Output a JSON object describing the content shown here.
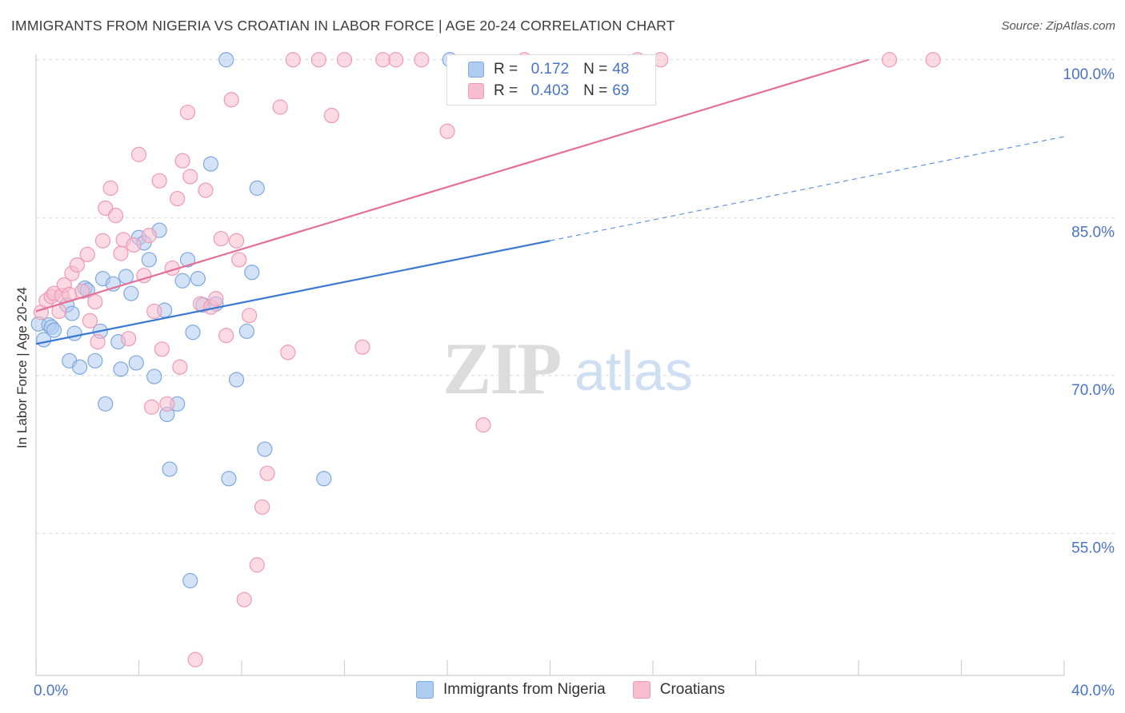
{
  "title": "IMMIGRANTS FROM NIGERIA VS CROATIAN IN LABOR FORCE | AGE 20-24 CORRELATION CHART",
  "source": "Source: ZipAtlas.com",
  "watermark": {
    "zip": "ZIP",
    "atlas": "atlas"
  },
  "legend": {
    "r_label": "R =",
    "n_label": "N =",
    "series": [
      {
        "r": "0.172",
        "n": "48"
      },
      {
        "r": "0.403",
        "n": "69"
      }
    ]
  },
  "colors": {
    "blue_fill": "#aecbf0",
    "blue_stroke": "#7fa8e0",
    "blue_line": "#3a78d4",
    "pink_fill": "#f7bccd",
    "pink_stroke": "#ef9ab4",
    "pink_line": "#e46f98",
    "tick_label": "#4a73c8",
    "grid": "#d9d9d9"
  },
  "chart_data": {
    "type": "scatter",
    "title": "IMMIGRANTS FROM NIGERIA VS CROATIAN IN LABOR FORCE | AGE 20-24 CORRELATION CHART",
    "xlabel": "",
    "ylabel": "In Labor Force | Age 20-24",
    "xlim": [
      0,
      40
    ],
    "ylim": [
      41.5,
      101.5
    ],
    "x_tick_labels": [
      "0.0%",
      "40.0%"
    ],
    "y_ticks": [
      55,
      70,
      85,
      100
    ],
    "y_tick_labels": [
      "55.0%",
      "70.0%",
      "85.0%",
      "100.0%"
    ],
    "legend_position": "top-center",
    "series": [
      {
        "name": "Immigrants from Nigeria",
        "r": 0.172,
        "n": 48,
        "trend": {
          "x0": 0,
          "y0": 73.0,
          "x1": 20,
          "y1": 82.8,
          "dashed_to_x": 40,
          "dashed_to_y": 92.7
        },
        "points": [
          [
            0.1,
            74.9
          ],
          [
            0.3,
            73.4
          ],
          [
            0.5,
            74.8
          ],
          [
            0.6,
            74.6
          ],
          [
            0.7,
            74.3
          ],
          [
            1.2,
            76.7
          ],
          [
            1.3,
            71.4
          ],
          [
            1.4,
            75.9
          ],
          [
            1.5,
            74.0
          ],
          [
            1.7,
            70.8
          ],
          [
            1.9,
            78.3
          ],
          [
            2.0,
            78.1
          ],
          [
            2.3,
            71.4
          ],
          [
            2.5,
            74.2
          ],
          [
            2.6,
            79.2
          ],
          [
            2.7,
            67.3
          ],
          [
            3.0,
            78.7
          ],
          [
            3.2,
            73.2
          ],
          [
            3.3,
            70.6
          ],
          [
            3.5,
            79.4
          ],
          [
            3.7,
            77.8
          ],
          [
            3.9,
            71.2
          ],
          [
            4.0,
            83.1
          ],
          [
            4.2,
            82.6
          ],
          [
            4.4,
            81.0
          ],
          [
            4.6,
            69.9
          ],
          [
            4.8,
            83.8
          ],
          [
            5.0,
            76.2
          ],
          [
            5.1,
            66.3
          ],
          [
            5.2,
            61.1
          ],
          [
            5.5,
            67.3
          ],
          [
            5.7,
            79.0
          ],
          [
            5.9,
            81.0
          ],
          [
            6.0,
            50.5
          ],
          [
            6.1,
            74.1
          ],
          [
            6.3,
            79.2
          ],
          [
            6.5,
            76.7
          ],
          [
            6.8,
            90.1
          ],
          [
            7.0,
            76.8
          ],
          [
            7.4,
            100.0
          ],
          [
            7.5,
            60.2
          ],
          [
            7.8,
            69.6
          ],
          [
            8.2,
            74.2
          ],
          [
            8.4,
            79.8
          ],
          [
            8.6,
            87.8
          ],
          [
            8.9,
            63.0
          ],
          [
            11.2,
            60.2
          ],
          [
            16.1,
            100.0
          ]
        ]
      },
      {
        "name": "Croatians",
        "r": 0.403,
        "n": 69,
        "trend": {
          "x0": 0,
          "y0": 76.1,
          "x1": 32.4,
          "y1": 100.0
        },
        "points": [
          [
            0.2,
            76.0
          ],
          [
            0.4,
            77.1
          ],
          [
            0.6,
            77.5
          ],
          [
            0.7,
            77.8
          ],
          [
            0.9,
            76.1
          ],
          [
            1.0,
            77.6
          ],
          [
            1.1,
            78.6
          ],
          [
            1.3,
            77.7
          ],
          [
            1.4,
            79.7
          ],
          [
            1.6,
            80.5
          ],
          [
            1.8,
            78.0
          ],
          [
            2.0,
            81.5
          ],
          [
            2.1,
            75.2
          ],
          [
            2.3,
            77.0
          ],
          [
            2.4,
            73.2
          ],
          [
            2.6,
            82.8
          ],
          [
            2.7,
            85.9
          ],
          [
            2.9,
            87.8
          ],
          [
            3.1,
            85.2
          ],
          [
            3.3,
            81.6
          ],
          [
            3.4,
            82.9
          ],
          [
            3.6,
            73.5
          ],
          [
            3.8,
            82.4
          ],
          [
            4.0,
            91.0
          ],
          [
            4.2,
            79.5
          ],
          [
            4.4,
            83.3
          ],
          [
            4.5,
            67.0
          ],
          [
            4.6,
            76.1
          ],
          [
            4.8,
            88.5
          ],
          [
            4.9,
            72.5
          ],
          [
            5.1,
            67.3
          ],
          [
            5.3,
            80.2
          ],
          [
            5.5,
            86.8
          ],
          [
            5.6,
            70.8
          ],
          [
            5.7,
            90.4
          ],
          [
            5.9,
            95.0
          ],
          [
            6.0,
            88.9
          ],
          [
            6.2,
            43.0
          ],
          [
            6.4,
            76.8
          ],
          [
            6.6,
            87.6
          ],
          [
            6.8,
            76.5
          ],
          [
            7.0,
            77.3
          ],
          [
            7.2,
            83.0
          ],
          [
            7.4,
            73.8
          ],
          [
            7.6,
            96.2
          ],
          [
            7.8,
            82.8
          ],
          [
            7.9,
            81.0
          ],
          [
            8.1,
            48.7
          ],
          [
            8.3,
            75.7
          ],
          [
            8.6,
            52.0
          ],
          [
            8.8,
            57.5
          ],
          [
            9.0,
            60.7
          ],
          [
            9.5,
            95.5
          ],
          [
            9.8,
            72.2
          ],
          [
            10.0,
            100.0
          ],
          [
            11.0,
            100.0
          ],
          [
            11.5,
            94.7
          ],
          [
            12.0,
            100.0
          ],
          [
            12.7,
            72.7
          ],
          [
            13.5,
            100.0
          ],
          [
            14.0,
            100.0
          ],
          [
            15.0,
            100.0
          ],
          [
            16.0,
            93.2
          ],
          [
            17.4,
            65.3
          ],
          [
            19.0,
            100.0
          ],
          [
            23.4,
            100.0
          ],
          [
            24.3,
            100.0
          ],
          [
            33.2,
            100.0
          ],
          [
            34.9,
            100.0
          ]
        ]
      }
    ]
  }
}
